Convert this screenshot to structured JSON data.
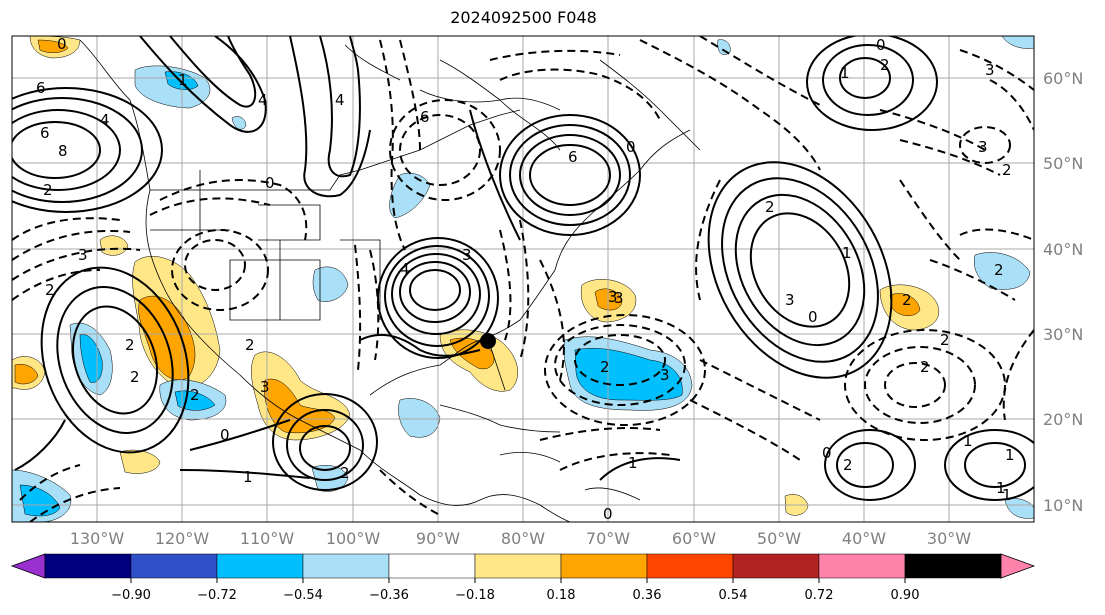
{
  "title": "2024092500 F048",
  "longitude_labels": [
    "130°W",
    "120°W",
    "110°W",
    "100°W",
    "90°W",
    "80°W",
    "70°W",
    "60°W",
    "50°W",
    "40°W",
    "30°W"
  ],
  "latitude_labels": [
    "60°N",
    "50°N",
    "40°N",
    "30°N",
    "20°N",
    "10°N"
  ],
  "colorbar": {
    "tick_labels": [
      "−0.90",
      "−0.72",
      "−0.54",
      "−0.36",
      "−0.18",
      "0.18",
      "0.36",
      "0.54",
      "0.72",
      "0.90"
    ],
    "colors": [
      "#9b30d0",
      "#00007f",
      "#3050c8",
      "#00bfff",
      "#aadff8",
      "#ffffff",
      "#ffe787",
      "#ffa500",
      "#ff4500",
      "#b22222",
      "#ff82ab"
    ]
  },
  "contour_labels": [
    "0",
    "6",
    "6",
    "8",
    "4",
    "4",
    "2",
    "4",
    "1",
    "6",
    "0",
    "2",
    "2",
    "3",
    "2",
    "3",
    "2",
    "2",
    "3",
    "0",
    "1",
    "2",
    "3",
    "3",
    "2",
    "4",
    "3",
    "0",
    "1",
    "2",
    "6",
    "3",
    "2",
    "2",
    "2",
    "0",
    "1",
    "1",
    "1",
    "0",
    "0",
    "3",
    "2",
    "2",
    "2",
    "1",
    "1",
    "2",
    "1",
    "0",
    "3"
  ],
  "marker": {
    "name": "storm-center-marker"
  }
}
